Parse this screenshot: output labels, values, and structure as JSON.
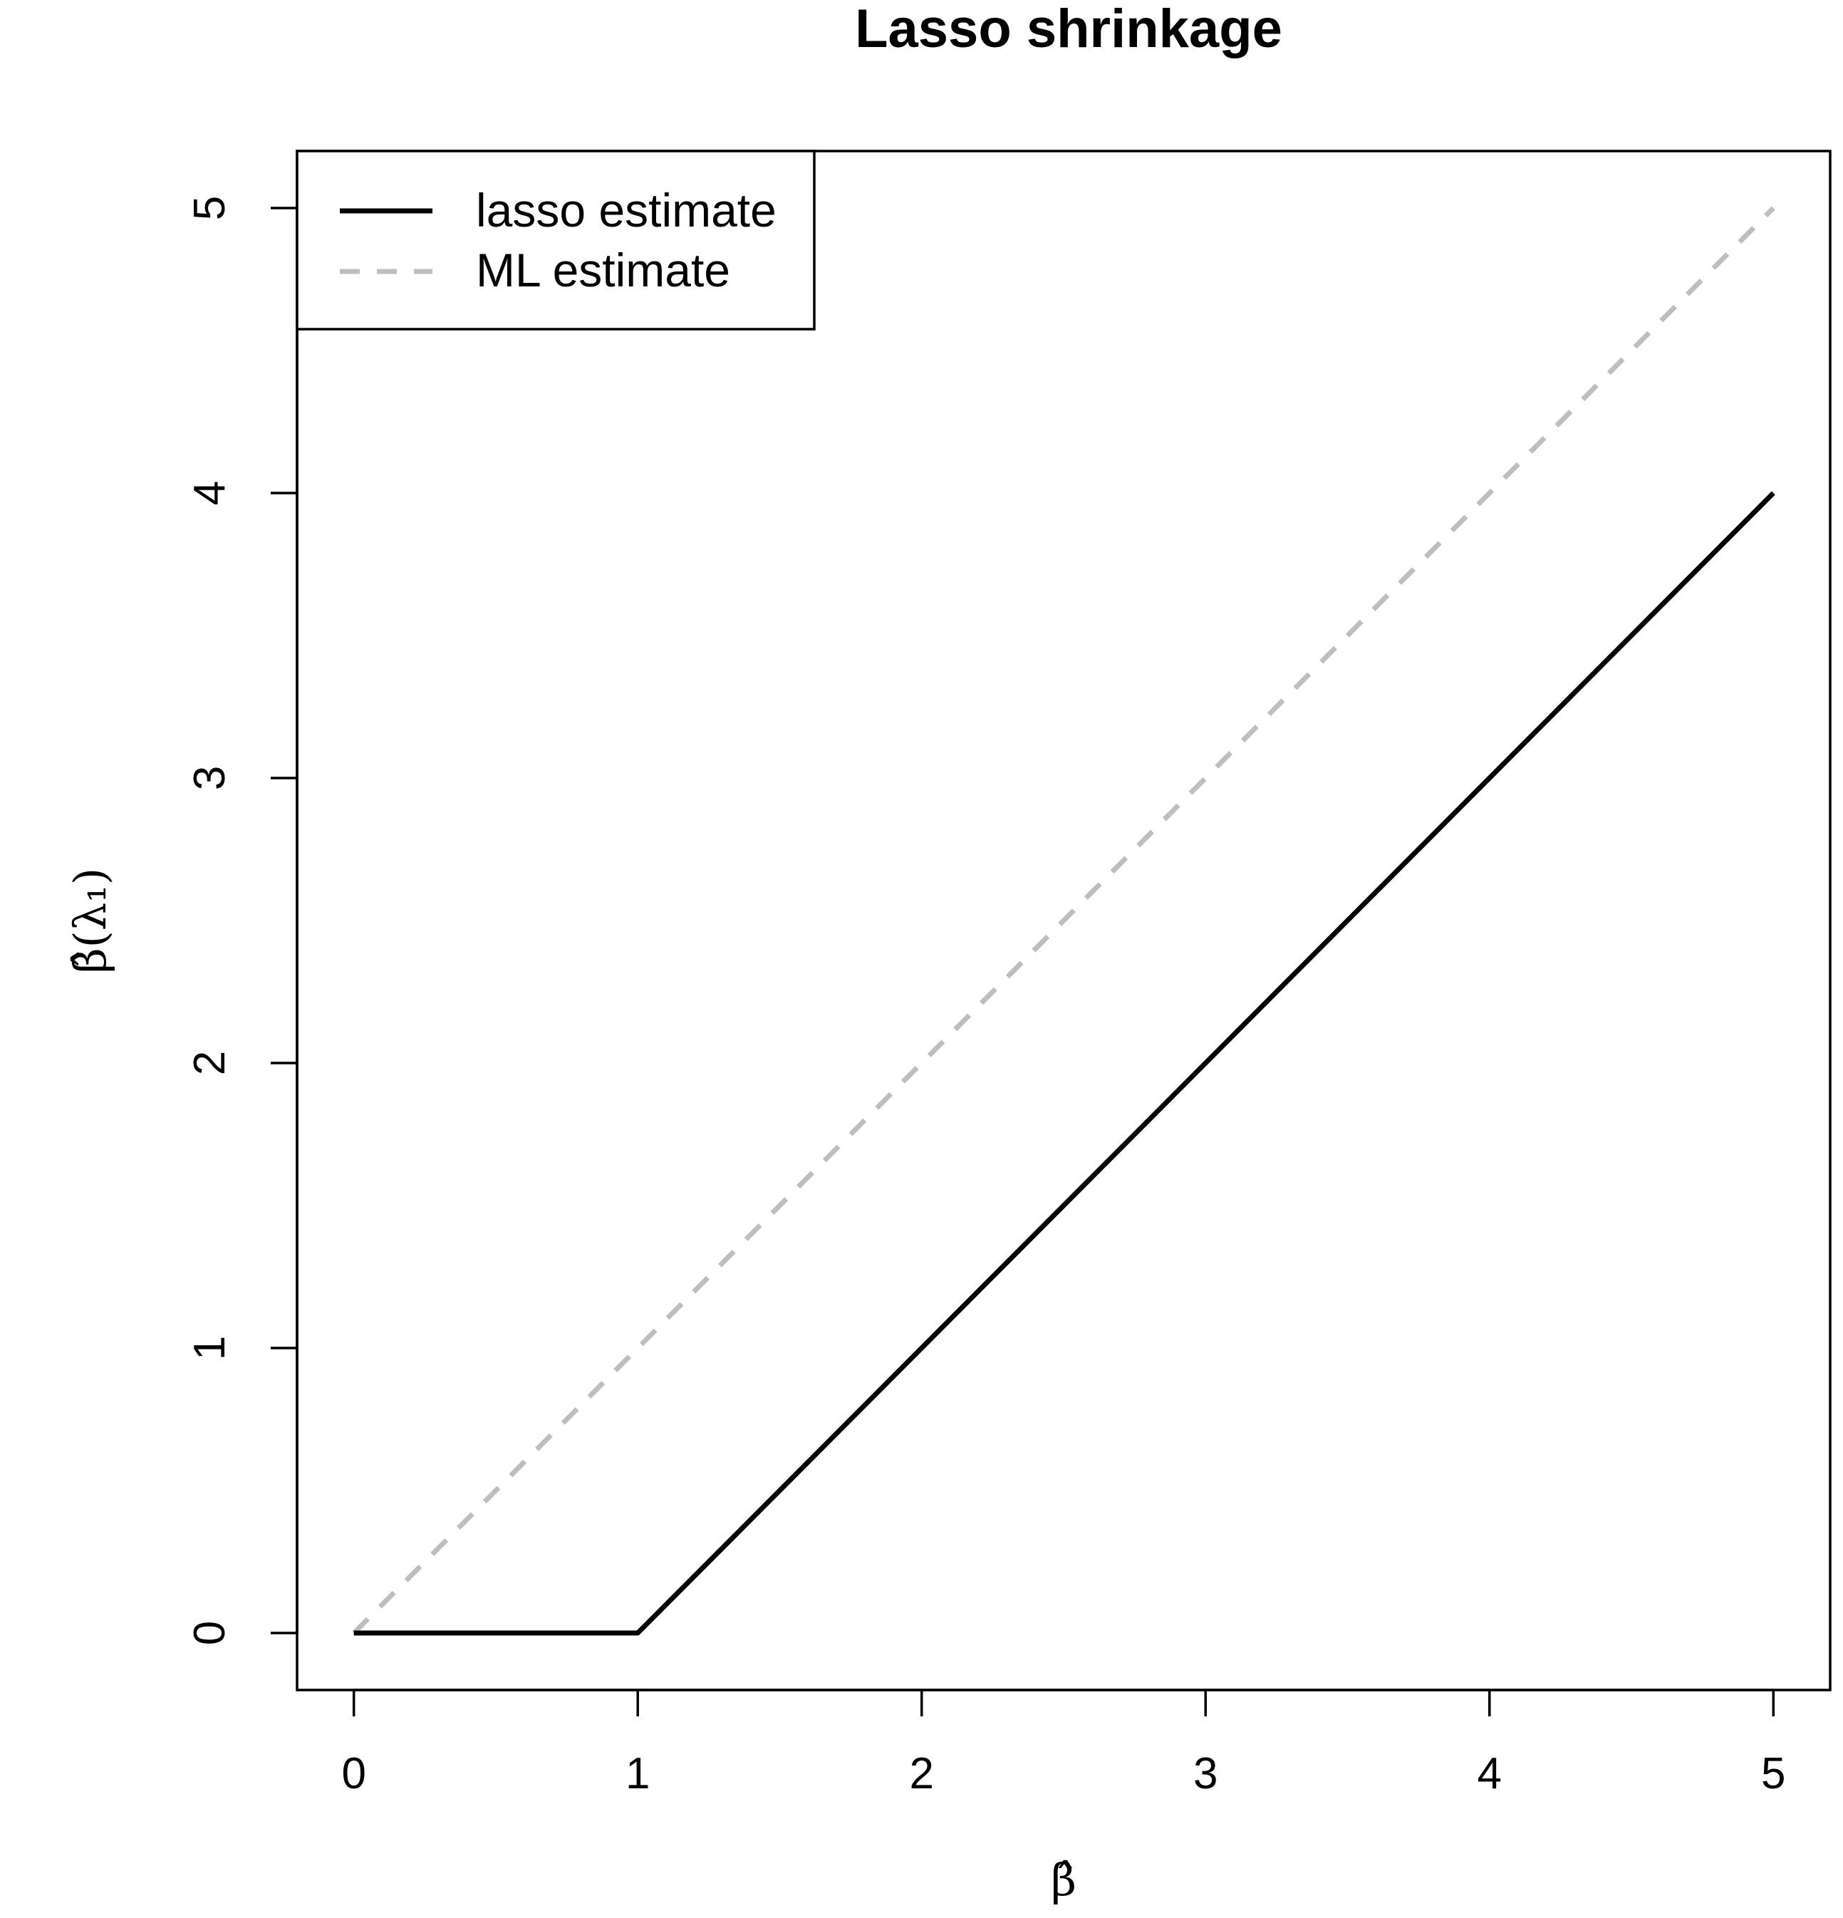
{
  "chart_data": {
    "type": "line",
    "title": "Lasso shrinkage",
    "xlabel": "β̂",
    "ylabel": "β̂(λ₁)",
    "xlim": [
      -0.2,
      5.2
    ],
    "ylim": [
      -0.2,
      5.2
    ],
    "x_ticks": [
      0,
      1,
      2,
      3,
      4,
      5
    ],
    "y_ticks": [
      0,
      1,
      2,
      3,
      4,
      5
    ],
    "x_tick_labels": [
      "0",
      "1",
      "2",
      "3",
      "4",
      "5"
    ],
    "y_tick_labels": [
      "0",
      "1",
      "2",
      "3",
      "4",
      "5"
    ],
    "grid": false,
    "legend_position": "top-left",
    "series": [
      {
        "name": "lasso estimate",
        "color": "#000000",
        "style": "solid",
        "x": [
          0,
          1,
          5
        ],
        "y": [
          0,
          0,
          4
        ]
      },
      {
        "name": "ML estimate",
        "color": "#bebebe",
        "style": "dashed",
        "x": [
          0,
          5
        ],
        "y": [
          0,
          5
        ]
      }
    ]
  }
}
